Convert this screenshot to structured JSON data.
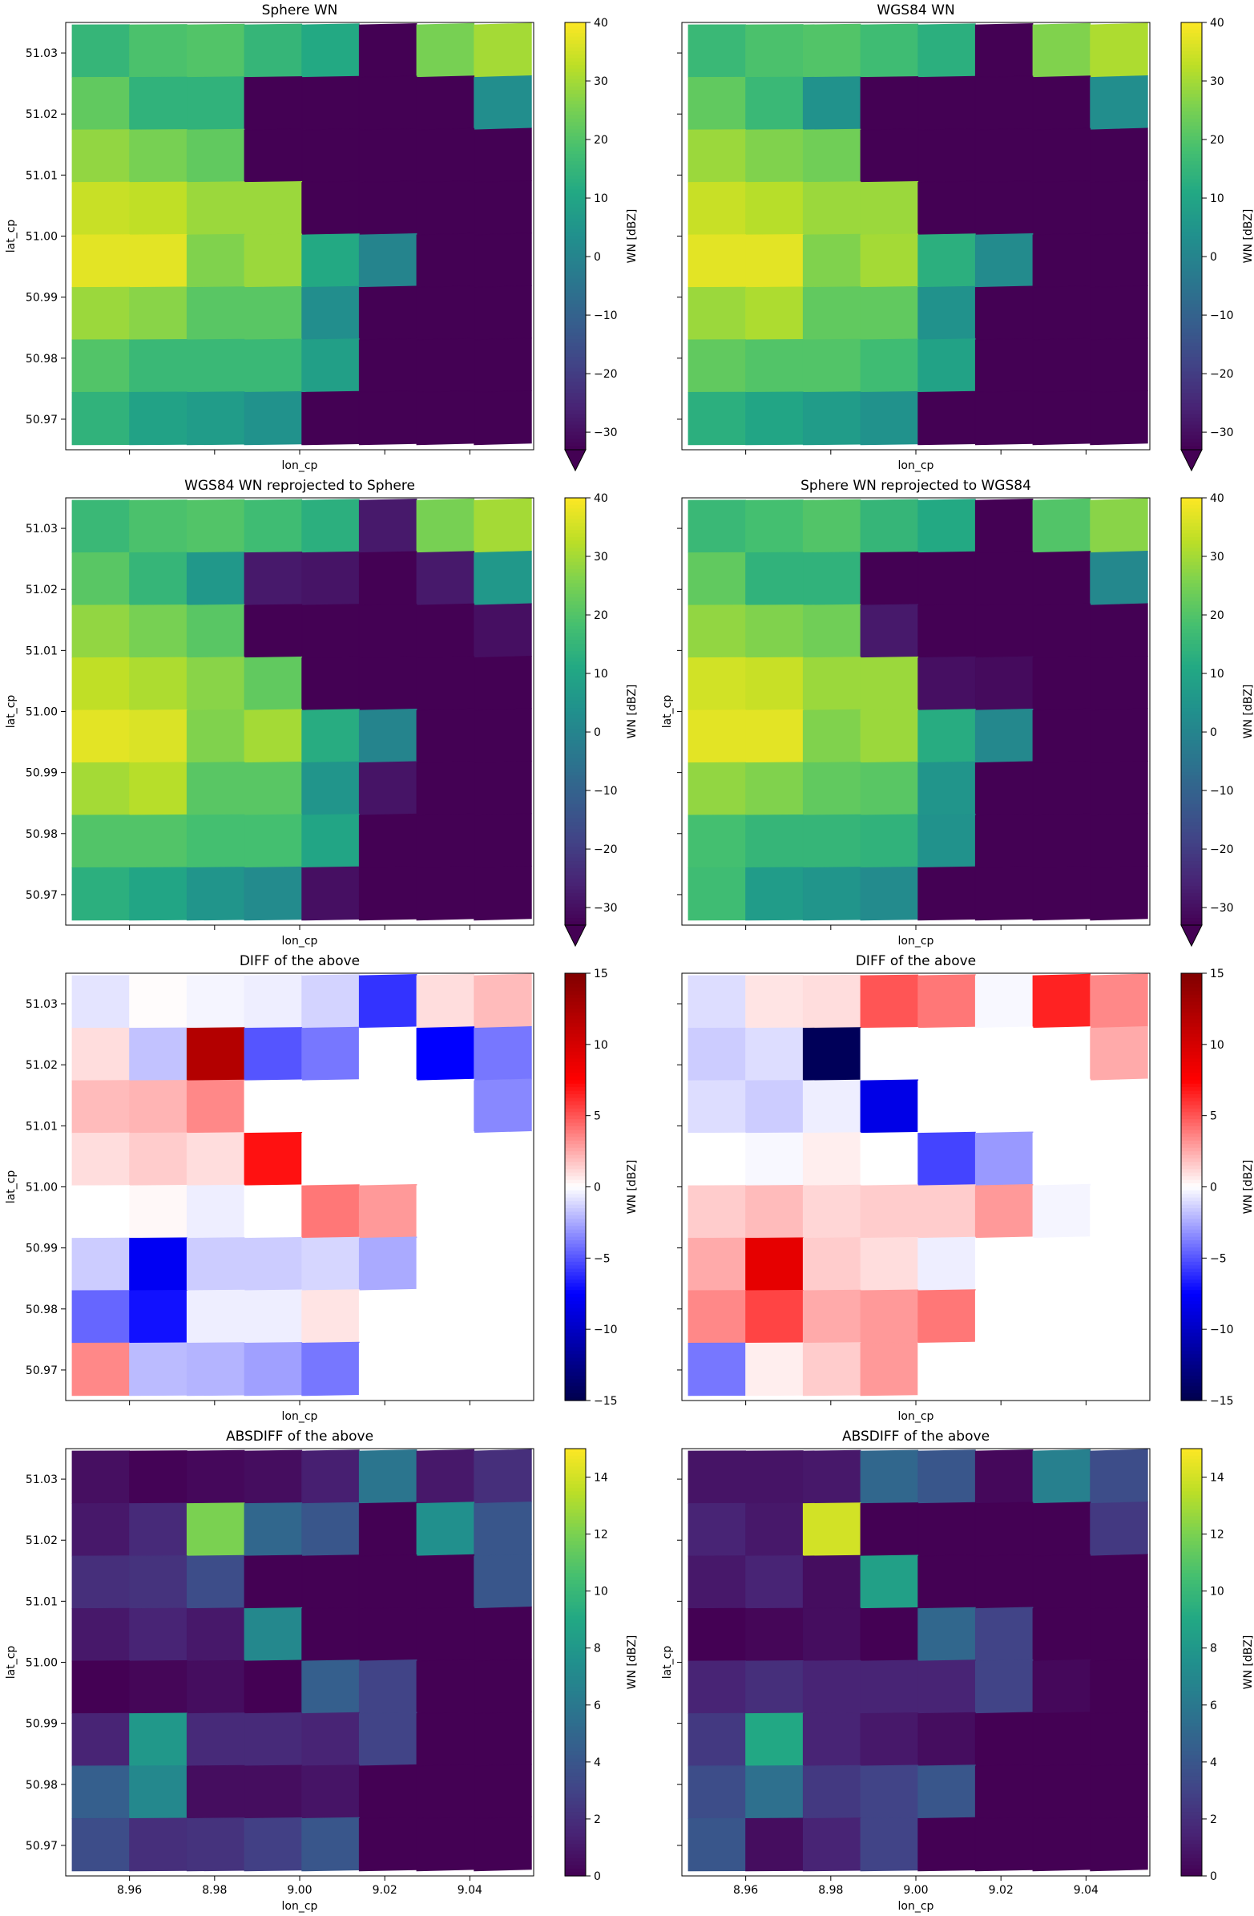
{
  "chart_data": [
    {
      "type": "heatmap",
      "title": "Sphere WN",
      "xlabel": "lon_cp",
      "ylabel": "lat_cp",
      "colormap": "viridis",
      "cbar_label": "WN [dBZ]",
      "clim": [
        -33,
        40
      ],
      "cbar_ticks": [
        "40",
        "30",
        "20",
        "10",
        "0",
        "−10",
        "−20",
        "−30"
      ],
      "cbar_tick_values": [
        40,
        30,
        20,
        10,
        0,
        -10,
        -20,
        -30
      ],
      "cbar_extend": "min",
      "x_ticks": [],
      "show_x_tick_labels": false,
      "y_ticks": [
        "51.03",
        "51.02",
        "51.01",
        "51.00",
        "50.99",
        "50.98",
        "50.97"
      ],
      "y_tick_values": [
        51.03,
        51.02,
        51.01,
        51.0,
        50.99,
        50.98,
        50.97
      ],
      "show_y_tick_labels": true,
      "xlim": [
        8.945,
        9.055
      ],
      "ylim": [
        50.965,
        51.035
      ],
      "values": [
        [
          15,
          19,
          20,
          15,
          11,
          -33,
          25,
          30
        ],
        [
          22,
          14,
          14,
          -33,
          -33,
          -33,
          -33,
          3
        ],
        [
          28,
          25,
          22,
          -33,
          -33,
          -33,
          -33,
          -33
        ],
        [
          34,
          33,
          29,
          29,
          -33,
          -33,
          -33,
          -33
        ],
        [
          37,
          37,
          26,
          29,
          11,
          0,
          -33,
          -33
        ],
        [
          29,
          27,
          21,
          21,
          3,
          -33,
          -33,
          -33
        ],
        [
          20,
          16,
          16,
          16,
          8,
          -33,
          -33,
          -33
        ],
        [
          14,
          9,
          7,
          4,
          -33,
          -33,
          -33,
          -33
        ]
      ]
    },
    {
      "type": "heatmap",
      "title": "WGS84 WN",
      "xlabel": "lon_cp",
      "ylabel": "",
      "colormap": "viridis",
      "cbar_label": "WN [dBZ]",
      "clim": [
        -33,
        40
      ],
      "cbar_ticks": [
        "40",
        "30",
        "20",
        "10",
        "0",
        "−10",
        "−20",
        "−30"
      ],
      "cbar_tick_values": [
        40,
        30,
        20,
        10,
        0,
        -10,
        -20,
        -30
      ],
      "cbar_extend": "min",
      "x_ticks": [],
      "show_x_tick_labels": false,
      "y_ticks": [],
      "show_y_tick_labels": false,
      "xlim": [
        8.945,
        9.055
      ],
      "ylim": [
        50.965,
        51.035
      ],
      "values": [
        [
          16,
          19,
          20,
          17,
          13,
          -33,
          26,
          31
        ],
        [
          22,
          16,
          4,
          -33,
          -33,
          -33,
          -33,
          3
        ],
        [
          29,
          26,
          24,
          -33,
          -33,
          -33,
          -33,
          -33
        ],
        [
          34,
          32,
          29,
          29,
          -33,
          -33,
          -33,
          -33
        ],
        [
          37,
          37,
          26,
          30,
          13,
          2,
          -33,
          -33
        ],
        [
          29,
          31,
          22,
          22,
          4,
          -33,
          -33,
          -33
        ],
        [
          22,
          20,
          20,
          17,
          9,
          -33,
          -33,
          -33
        ],
        [
          13,
          10,
          7,
          4,
          -33,
          -33,
          -33,
          -33
        ]
      ]
    },
    {
      "type": "heatmap",
      "title": "WGS84 WN reprojected to Sphere",
      "xlabel": "lon_cp",
      "ylabel": "lat_cp",
      "colormap": "viridis",
      "cbar_label": "WN [dBZ]",
      "clim": [
        -33,
        40
      ],
      "cbar_ticks": [
        "40",
        "30",
        "20",
        "10",
        "0",
        "−10",
        "−20",
        "−30"
      ],
      "cbar_tick_values": [
        40,
        30,
        20,
        10,
        0,
        -10,
        -20,
        -30
      ],
      "cbar_extend": "min",
      "x_ticks": [],
      "show_x_tick_labels": false,
      "y_ticks": [
        "51.03",
        "51.02",
        "51.01",
        "51.00",
        "50.99",
        "50.98",
        "50.97"
      ],
      "y_tick_values": [
        51.03,
        51.02,
        51.01,
        51.0,
        50.99,
        50.98,
        50.97
      ],
      "show_y_tick_labels": true,
      "xlim": [
        8.945,
        9.055
      ],
      "ylim": [
        50.965,
        51.035
      ],
      "values": [
        [
          16,
          19,
          20,
          17,
          13,
          -28,
          25,
          30
        ],
        [
          21,
          15,
          6,
          -28,
          -29,
          -33,
          -28,
          6
        ],
        [
          28,
          25,
          21,
          -33,
          -33,
          -33,
          -33,
          -30
        ],
        [
          33,
          31,
          27,
          22,
          -33,
          -33,
          -33,
          -33
        ],
        [
          37,
          36,
          26,
          30,
          12,
          0,
          -33,
          -33
        ],
        [
          30,
          32,
          21,
          21,
          5,
          -29,
          -33,
          -33
        ],
        [
          20,
          20,
          18,
          18,
          10,
          -33,
          -33,
          -33
        ],
        [
          13,
          10,
          5,
          2,
          -30,
          -33,
          -33,
          -33
        ]
      ]
    },
    {
      "type": "heatmap",
      "title": "Sphere WN reprojected to WGS84",
      "xlabel": "lon_cp",
      "ylabel": "lat_cp",
      "colormap": "viridis",
      "cbar_label": "WN [dBZ]",
      "clim": [
        -33,
        40
      ],
      "cbar_ticks": [
        "40",
        "30",
        "20",
        "10",
        "0",
        "−10",
        "−20",
        "−30"
      ],
      "cbar_tick_values": [
        40,
        30,
        20,
        10,
        0,
        -10,
        -20,
        -30
      ],
      "cbar_extend": "min",
      "x_ticks": [],
      "show_x_tick_labels": false,
      "y_ticks": [],
      "show_y_tick_labels": false,
      "xlim": [
        8.945,
        9.055
      ],
      "ylim": [
        50.965,
        51.035
      ],
      "values": [
        [
          16,
          18,
          20,
          15,
          11,
          -33,
          20,
          27
        ],
        [
          22,
          14,
          14,
          -33,
          -33,
          -33,
          -33,
          1
        ],
        [
          28,
          26,
          24,
          -28,
          -33,
          -33,
          -33,
          -33
        ],
        [
          35,
          34,
          29,
          29,
          -30,
          -31,
          -33,
          -33
        ],
        [
          37,
          37,
          26,
          29,
          12,
          1,
          -33,
          -33
        ],
        [
          28,
          26,
          22,
          21,
          5,
          -33,
          -33,
          -33
        ],
        [
          18,
          15,
          15,
          14,
          4,
          -33,
          -33,
          -33
        ],
        [
          17,
          7,
          5,
          2,
          -33,
          -33,
          -33,
          -33
        ]
      ]
    },
    {
      "type": "heatmap",
      "title": "DIFF of the above",
      "xlabel": "lon_cp",
      "ylabel": "lat_cp",
      "colormap": "seismic",
      "cbar_label": "WN [dBZ]",
      "clim": [
        -15,
        15
      ],
      "cbar_ticks": [
        "15",
        "10",
        "5",
        "0",
        "−5",
        "−10",
        "−15"
      ],
      "cbar_tick_values": [
        15,
        10,
        5,
        0,
        -5,
        -10,
        -15
      ],
      "cbar_extend": "neither",
      "x_ticks": [],
      "show_x_tick_labels": false,
      "y_ticks": [
        "51.03",
        "51.02",
        "51.01",
        "51.00",
        "50.99",
        "50.98",
        "50.97"
      ],
      "y_tick_values": [
        51.03,
        51.02,
        51.01,
        51.0,
        50.99,
        50.98,
        50.97
      ],
      "show_y_tick_labels": true,
      "xlim": [
        8.945,
        9.055
      ],
      "ylim": [
        50.965,
        51.035
      ],
      "values": [
        [
          -0.8,
          0.1,
          -0.3,
          -0.5,
          -1.3,
          -6.0,
          1.0,
          2.0
        ],
        [
          1.0,
          -1.8,
          12.0,
          -5.0,
          -4.0,
          0,
          -7.5,
          -4.0
        ],
        [
          2.0,
          2.2,
          3.5,
          0,
          0,
          0,
          0,
          -3.5
        ],
        [
          1.0,
          1.5,
          1.0,
          7.0,
          0,
          0,
          0,
          0
        ],
        [
          0,
          0.2,
          -0.5,
          0,
          4.0,
          3.0,
          0,
          0
        ],
        [
          -1.5,
          -8.0,
          -1.5,
          -1.5,
          -1.2,
          -2.5,
          0,
          0
        ],
        [
          -4.5,
          -7.0,
          -0.5,
          -0.5,
          0.8,
          0,
          0,
          0
        ],
        [
          3.5,
          -2.0,
          -2.2,
          -2.8,
          -4.0,
          0,
          0,
          0
        ]
      ]
    },
    {
      "type": "heatmap",
      "title": "DIFF of the above",
      "xlabel": "lon_cp",
      "ylabel": "",
      "colormap": "seismic",
      "cbar_label": "WN [dBZ]",
      "clim": [
        -15,
        15
      ],
      "cbar_ticks": [
        "15",
        "10",
        "5",
        "0",
        "−5",
        "−10",
        "−15"
      ],
      "cbar_tick_values": [
        15,
        10,
        5,
        0,
        -5,
        -10,
        -15
      ],
      "cbar_extend": "neither",
      "x_ticks": [],
      "show_x_tick_labels": false,
      "y_ticks": [],
      "show_y_tick_labels": false,
      "xlim": [
        8.945,
        9.055
      ],
      "ylim": [
        50.965,
        51.035
      ],
      "values": [
        [
          -1.0,
          0.8,
          1.0,
          5.0,
          4.0,
          -0.2,
          6.5,
          3.5
        ],
        [
          -1.5,
          -1.0,
          -14.5,
          0,
          0,
          0,
          0,
          2.5
        ],
        [
          -1.0,
          -1.5,
          -0.5,
          -8.5,
          0,
          0,
          0,
          0
        ],
        [
          0,
          -0.2,
          0.5,
          0,
          -5.5,
          -3.0,
          0,
          0
        ],
        [
          1.5,
          2.0,
          1.2,
          1.5,
          1.5,
          3.0,
          -0.3,
          0
        ],
        [
          2.5,
          9.0,
          1.5,
          1.0,
          -0.5,
          0,
          0,
          0
        ],
        [
          3.5,
          5.5,
          2.5,
          3.0,
          4.0,
          0,
          0,
          0
        ],
        [
          -4.0,
          0.5,
          1.5,
          3.0,
          0,
          0,
          0,
          0
        ]
      ]
    },
    {
      "type": "heatmap",
      "title": "ABSDIFF of the above",
      "xlabel": "lon_cp",
      "ylabel": "lat_cp",
      "colormap": "viridis",
      "cbar_label": "WN [dBZ]",
      "clim": [
        0,
        15
      ],
      "cbar_ticks": [
        "14",
        "12",
        "10",
        "8",
        "6",
        "4",
        "2",
        "0"
      ],
      "cbar_tick_values": [
        14,
        12,
        10,
        8,
        6,
        4,
        2,
        0
      ],
      "cbar_extend": "neither",
      "x_ticks": [
        "8.96",
        "8.98",
        "9.00",
        "9.02",
        "9.04"
      ],
      "x_tick_values": [
        8.96,
        8.98,
        9.0,
        9.02,
        9.04
      ],
      "show_x_tick_labels": true,
      "y_ticks": [
        "51.03",
        "51.02",
        "51.01",
        "51.00",
        "50.99",
        "50.98",
        "50.97"
      ],
      "y_tick_values": [
        51.03,
        51.02,
        51.01,
        51.0,
        50.99,
        50.98,
        50.97
      ],
      "show_y_tick_labels": true,
      "xlim": [
        8.945,
        9.055
      ],
      "ylim": [
        50.965,
        51.035
      ],
      "values": [
        [
          0.6,
          0.1,
          0.3,
          0.5,
          1.3,
          5.8,
          1.0,
          2.0
        ],
        [
          1.0,
          1.8,
          12.0,
          5.0,
          4.0,
          0,
          7.5,
          4.0
        ],
        [
          2.0,
          2.2,
          3.5,
          0,
          0,
          0,
          0,
          4.0
        ],
        [
          1.0,
          1.5,
          1.0,
          7.0,
          0,
          0,
          0,
          0
        ],
        [
          0,
          0.2,
          0.5,
          0,
          4.5,
          3.0,
          0,
          0
        ],
        [
          1.5,
          8.0,
          1.8,
          1.8,
          1.5,
          3.0,
          0,
          0
        ],
        [
          4.5,
          7.0,
          0.5,
          0.5,
          0.8,
          0,
          0,
          0
        ],
        [
          3.5,
          2.0,
          2.2,
          2.8,
          4.0,
          0,
          0,
          0
        ]
      ]
    },
    {
      "type": "heatmap",
      "title": "ABSDIFF of the above",
      "xlabel": "lon_cp",
      "ylabel": "lat_cp",
      "colormap": "viridis",
      "cbar_label": "WN [dBZ]",
      "clim": [
        0,
        15
      ],
      "cbar_ticks": [
        "14",
        "12",
        "10",
        "8",
        "6",
        "4",
        "2",
        "0"
      ],
      "cbar_tick_values": [
        14,
        12,
        10,
        8,
        6,
        4,
        2,
        0
      ],
      "cbar_extend": "neither",
      "x_ticks": [
        "8.96",
        "8.98",
        "9.00",
        "9.02",
        "9.04"
      ],
      "x_tick_values": [
        8.96,
        8.98,
        9.0,
        9.02,
        9.04
      ],
      "show_x_tick_labels": true,
      "y_ticks": [],
      "show_y_tick_labels": false,
      "xlim": [
        8.945,
        9.055
      ],
      "ylim": [
        50.965,
        51.035
      ],
      "values": [
        [
          0.8,
          0.8,
          1.0,
          5.0,
          4.0,
          0.3,
          6.5,
          3.5
        ],
        [
          1.5,
          1.0,
          14.0,
          0,
          0,
          0,
          0,
          2.5
        ],
        [
          1.0,
          1.5,
          0.5,
          8.5,
          0,
          0,
          0,
          0
        ],
        [
          0,
          0.2,
          0.5,
          0,
          5.0,
          3.0,
          0,
          0
        ],
        [
          1.5,
          2.0,
          1.5,
          1.5,
          1.5,
          3.0,
          0.3,
          0
        ],
        [
          2.5,
          9.0,
          1.5,
          1.0,
          0.5,
          0,
          0,
          0
        ],
        [
          3.5,
          5.5,
          2.5,
          3.0,
          4.0,
          0,
          0,
          0
        ],
        [
          4.0,
          0.5,
          1.5,
          3.0,
          0,
          0,
          0,
          0
        ]
      ]
    }
  ]
}
